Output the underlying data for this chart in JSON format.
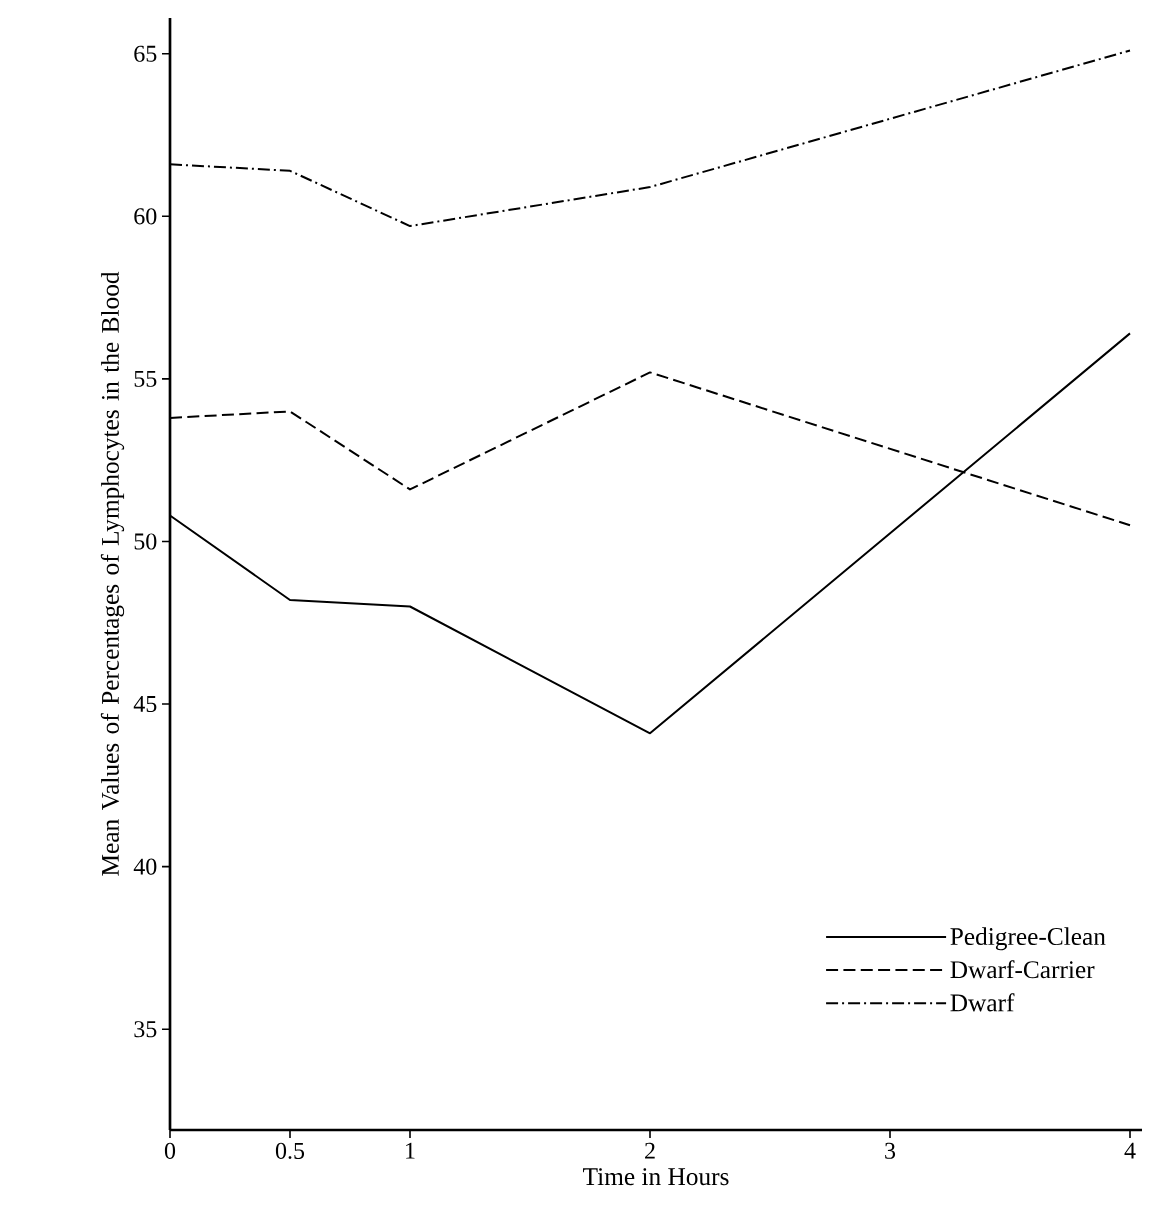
{
  "chart_data": {
    "type": "line",
    "xlabel": "Time in Hours",
    "ylabel": "Mean Values of Percentages of Lymphocytes in the Blood",
    "x": [
      0,
      0.5,
      1,
      2,
      4
    ],
    "series": [
      {
        "name": "Pedigree-Clean",
        "color": "#000000",
        "line_style": "solid",
        "values": [
          50.8,
          48.2,
          48.0,
          44.1,
          56.4
        ]
      },
      {
        "name": "Dwarf-Carrier",
        "color": "#000000",
        "line_style": "dashed",
        "values": [
          53.8,
          54.0,
          51.6,
          55.2,
          50.5
        ]
      },
      {
        "name": "Dwarf",
        "color": "#000000",
        "line_style": "dashdotted",
        "values": [
          61.6,
          61.4,
          59.7,
          60.9,
          65.1
        ]
      }
    ],
    "xlim": [
      0,
      4.05
    ],
    "ylim": [
      31.9,
      66.1
    ],
    "xticks": [
      0,
      0.5,
      1,
      2,
      3,
      4
    ],
    "yticks": [
      35,
      40,
      45,
      50,
      55,
      60,
      65
    ],
    "grid": false,
    "legend": "bottom right",
    "marker": "none"
  }
}
